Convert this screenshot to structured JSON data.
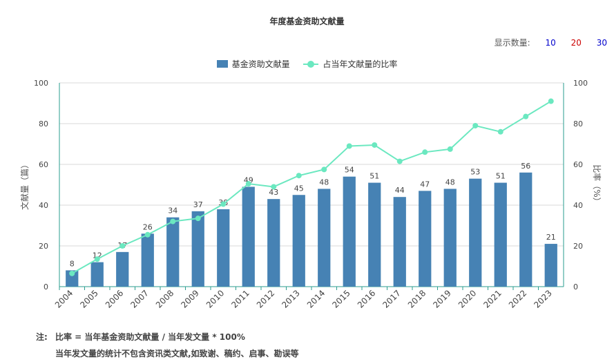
{
  "chart_data": {
    "type": "bar",
    "title": "年度基金资助文献量",
    "categories": [
      "2004",
      "2005",
      "2006",
      "2007",
      "2008",
      "2009",
      "2010",
      "2011",
      "2012",
      "2013",
      "2014",
      "2015",
      "2016",
      "2017",
      "2018",
      "2019",
      "2020",
      "2021",
      "2022",
      "2023"
    ],
    "series": [
      {
        "name": "基金资助文献量",
        "type": "bar",
        "axis": "left",
        "color": "#4682b4",
        "values": [
          8,
          12,
          17,
          26,
          34,
          37,
          38,
          49,
          43,
          45,
          48,
          54,
          51,
          44,
          47,
          48,
          53,
          51,
          56,
          21
        ]
      },
      {
        "name": "占当年文献量的比率",
        "type": "line",
        "axis": "right",
        "color": "#6be8c0",
        "values": [
          6.5,
          13.5,
          20,
          25.5,
          32,
          33.5,
          40.5,
          50.5,
          49,
          54.5,
          57.5,
          69,
          69.5,
          61.5,
          66,
          67.5,
          79,
          76,
          83.5,
          91
        ]
      }
    ],
    "ylabel": "文献量（篇）",
    "y2label": "比率（%）",
    "ylim": [
      0,
      100
    ],
    "y2lim": [
      0,
      100
    ],
    "yticks": [
      0,
      20,
      40,
      60,
      80,
      100
    ],
    "grid": true,
    "legend_position": "top-center"
  },
  "count_control": {
    "label": "显示数量:",
    "options": [
      {
        "text": "10",
        "color": "#0000cc"
      },
      {
        "text": "20",
        "color": "#cc0000"
      },
      {
        "text": "30",
        "color": "#0000cc"
      }
    ]
  },
  "notes": {
    "label": "注:",
    "line1": "比率 = 当年基金资助文献量 / 当年发文量 * 100%",
    "line2": "当年发文量的统计不包含资讯类文献,如致谢、稿约、启事、勘误等"
  }
}
